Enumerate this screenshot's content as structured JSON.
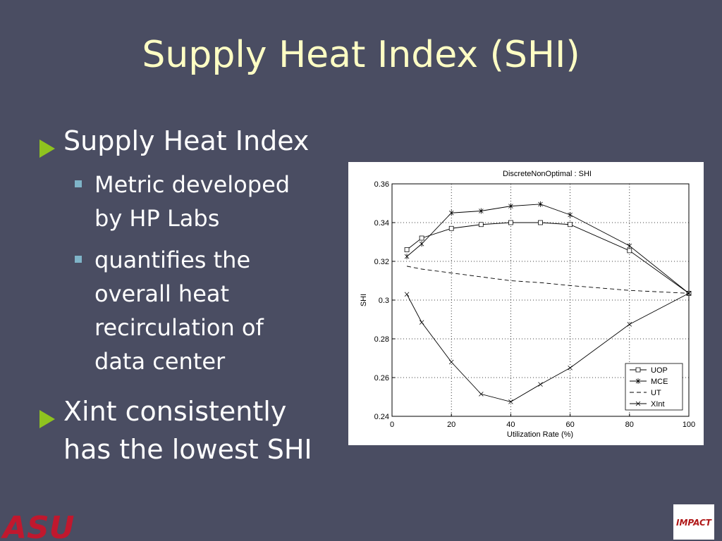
{
  "slide": {
    "title": "Supply Heat Index (SHI)",
    "bullets": [
      {
        "lines": [
          "Supply Heat Index"
        ],
        "sub": [
          {
            "lines": [
              "Metric developed",
              "by HP Labs"
            ]
          },
          {
            "lines": [
              "quantifies the",
              "overall heat",
              "recirculation of",
              "data center"
            ]
          }
        ]
      },
      {
        "lines": [
          "Xint consistently",
          "has the lowest SHI"
        ],
        "sub": []
      }
    ],
    "logo_left": "ASU",
    "logo_right": "IMPACT"
  },
  "chart_data": {
    "type": "line",
    "title": "DiscreteNonOptimal : SHI",
    "x_label": "Utilization Rate (%)",
    "y_label": "SHI",
    "x": [
      5,
      10,
      20,
      30,
      40,
      50,
      60,
      80,
      100
    ],
    "series": [
      {
        "name": "UOP",
        "color": "#000000",
        "marker": "square",
        "dash": "solid",
        "values": [
          0.326,
          0.332,
          0.337,
          0.339,
          0.34,
          0.34,
          0.339,
          0.3255,
          0.3035
        ]
      },
      {
        "name": "MCE",
        "color": "#000000",
        "marker": "asterisk",
        "dash": "solid",
        "values": [
          0.3225,
          0.329,
          0.345,
          0.346,
          0.3485,
          0.3495,
          0.344,
          0.328,
          0.3035
        ]
      },
      {
        "name": "UT",
        "color": "#000000",
        "marker": "none",
        "dash": "dashed",
        "values": [
          0.3175,
          0.316,
          0.314,
          0.312,
          0.31,
          0.309,
          0.3075,
          0.305,
          0.3035
        ]
      },
      {
        "name": "XInt",
        "color": "#000000",
        "marker": "x",
        "dash": "solid",
        "values": [
          0.303,
          0.2885,
          0.268,
          0.2515,
          0.2475,
          0.2565,
          0.265,
          0.2875,
          0.3035
        ]
      }
    ],
    "xlim": [
      0,
      100
    ],
    "xticks": [
      0,
      20,
      40,
      60,
      80,
      100
    ],
    "ylim": [
      0.24,
      0.36
    ],
    "yticks": [
      0.24,
      0.26,
      0.28,
      0.3,
      0.32,
      0.34,
      0.36
    ],
    "grid": true,
    "legend": "lower right"
  }
}
